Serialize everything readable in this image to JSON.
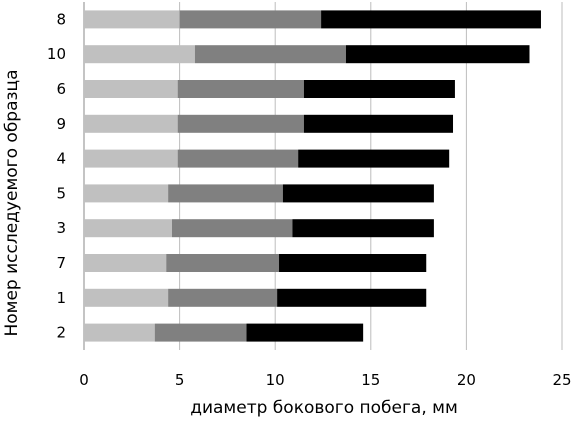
{
  "chart_data": {
    "type": "bar",
    "orientation": "horizontal",
    "stacked": true,
    "xlabel": "диаметр бокового побега, мм",
    "ylabel": "Номер  исследуемого образца",
    "xlim": [
      0,
      25
    ],
    "xticks": [
      "0",
      "5",
      "10",
      "15",
      "20",
      "25"
    ],
    "grid": "vertical",
    "legend": "none",
    "categories": [
      "8",
      "10",
      "6",
      "9",
      "4",
      "5",
      "3",
      "7",
      "1",
      "2"
    ],
    "series": [
      {
        "color": "#c0c0c0",
        "values": [
          5.0,
          5.8,
          4.9,
          4.9,
          4.9,
          4.4,
          4.6,
          4.3,
          4.4,
          3.7
        ]
      },
      {
        "color": "#808080",
        "values": [
          7.4,
          7.9,
          6.6,
          6.6,
          6.3,
          6.0,
          6.3,
          5.9,
          5.7,
          4.8
        ]
      },
      {
        "color": "#000000",
        "values": [
          11.5,
          9.6,
          7.9,
          7.8,
          7.9,
          7.9,
          7.4,
          7.7,
          7.8,
          6.1
        ]
      }
    ]
  }
}
